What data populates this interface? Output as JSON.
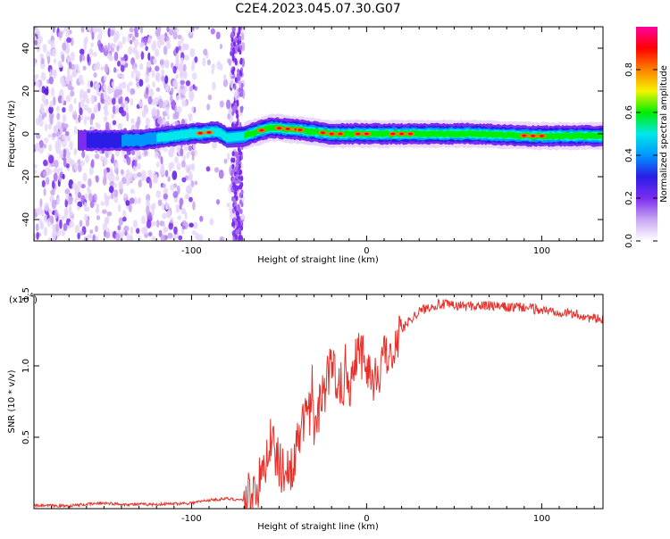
{
  "title": "C2E4.2023.045.07.30.G07",
  "chart_data": [
    {
      "type": "heatmap",
      "xlabel": "Height of straight line (km)",
      "ylabel": "Frequency (Hz)",
      "xlim": [
        -190,
        135
      ],
      "ylim": [
        -50,
        50
      ],
      "xticks": [
        -100,
        0,
        100
      ],
      "yticks": [
        -40,
        -20,
        0,
        20,
        40
      ],
      "colorbar": {
        "label": "Normalized spectral amplitude",
        "range": [
          0.0,
          1.0
        ],
        "ticks": [
          0.0,
          0.2,
          0.4,
          0.6,
          0.8
        ],
        "colors": [
          "#ffffff",
          "#c9a6f2",
          "#7b2cf0",
          "#2a1ee6",
          "#0096ff",
          "#00e8e8",
          "#00ee00",
          "#f4f400",
          "#ff8000",
          "#ff0000",
          "#ff00a0"
        ]
      },
      "band": {
        "center_freq": [
          [
            -190,
            -2
          ],
          [
            -160,
            -3
          ],
          [
            -130,
            -3
          ],
          [
            -100,
            0
          ],
          [
            -85,
            1
          ],
          [
            -75,
            -4
          ],
          [
            -70,
            -1
          ],
          [
            -55,
            3
          ],
          [
            -40,
            2
          ],
          [
            -20,
            0
          ],
          [
            0,
            0
          ],
          [
            25,
            0
          ],
          [
            60,
            0
          ],
          [
            95,
            -1
          ],
          [
            135,
            -1
          ]
        ],
        "halfwidth_hz": 4,
        "noise_region_x": [
          -190,
          -70
        ],
        "gap_x": [
          -100,
          -77
        ]
      }
    },
    {
      "type": "line",
      "xlabel": "Height of straight line (km)",
      "ylabel": "SNR (10 * v/v)",
      "yscale_label": "(x10",
      "yscale_exponent": "4",
      "xlim": [
        -190,
        135
      ],
      "ylim": [
        0.0,
        1.5
      ],
      "xticks": [
        -100,
        0,
        100
      ],
      "yticks": [
        0.5,
        1.0,
        1.5
      ],
      "color": "#e8302a",
      "series": [
        {
          "x": [
            -190,
            -170,
            -150,
            -140,
            -120,
            -100,
            -90,
            -80,
            -70,
            -60,
            -55,
            -50,
            -45,
            -40,
            -35,
            -30,
            -25,
            -20,
            -15,
            -10,
            -5,
            0,
            5,
            10,
            15,
            20,
            25,
            30,
            35,
            40,
            45,
            50,
            60,
            70,
            80,
            90,
            100,
            110,
            120,
            130,
            135
          ],
          "y": [
            0.02,
            0.02,
            0.04,
            0.03,
            0.03,
            0.04,
            0.06,
            0.07,
            0.06,
            0.2,
            0.5,
            0.3,
            0.25,
            0.4,
            0.7,
            0.6,
            0.8,
            1.0,
            0.9,
            0.85,
            1.15,
            1.0,
            0.9,
            1.05,
            1.15,
            1.25,
            1.33,
            1.38,
            1.41,
            1.43,
            1.43,
            1.42,
            1.42,
            1.42,
            1.41,
            1.41,
            1.39,
            1.38,
            1.36,
            1.33,
            1.32
          ]
        }
      ]
    }
  ]
}
